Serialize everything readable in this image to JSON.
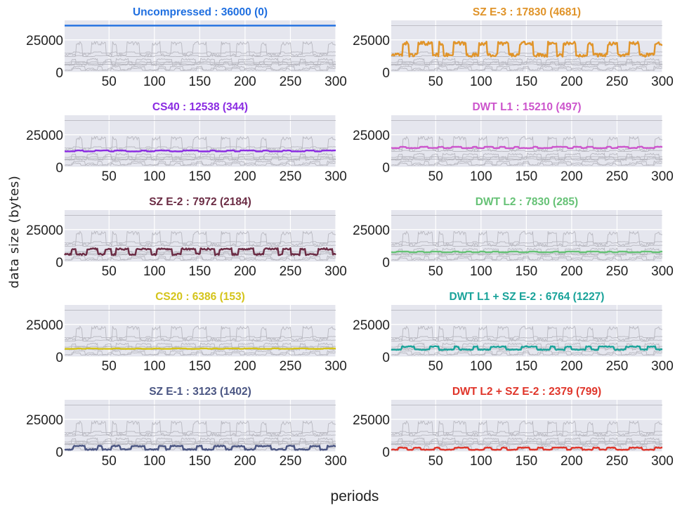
{
  "chart_data": {
    "type": "line",
    "xlabel": "periods",
    "ylabel": "data size (bytes)",
    "xlim": [
      1,
      300
    ],
    "ylim": [
      0,
      40000
    ],
    "x_ticks": [
      50,
      100,
      150,
      200,
      250,
      300
    ],
    "y_ticks": [
      0,
      25000
    ],
    "grid": true,
    "background": "#e5e6ee",
    "context_line_color": "#b8b8c0",
    "series_pattern": "periodic blocks of ~10 periods alternating between a low and high level",
    "series": [
      {
        "name": "Uncompressed",
        "title": "Uncompressed : 36000 (0)",
        "mean": 36000,
        "std": 0,
        "color": "#1f6fe0"
      },
      {
        "name": "SZ E-3",
        "title": "SZ E-3 : 17830 (4681)",
        "mean": 17830,
        "std": 4681,
        "color": "#e0942a"
      },
      {
        "name": "CS40",
        "title": "CS40 : 12538 (344)",
        "mean": 12538,
        "std": 344,
        "color": "#8a2be2"
      },
      {
        "name": "DWT L1",
        "title": "DWT L1 : 15210 (497)",
        "mean": 15210,
        "std": 497,
        "color": "#cc55cc"
      },
      {
        "name": "SZ E-2",
        "title": "SZ E-2 : 7972 (2184)",
        "mean": 7972,
        "std": 2184,
        "color": "#6b2c44"
      },
      {
        "name": "DWT L2",
        "title": "DWT L2 : 7830 (285)",
        "mean": 7830,
        "std": 285,
        "color": "#66c276"
      },
      {
        "name": "CS20",
        "title": "CS20 : 6386 (153)",
        "mean": 6386,
        "std": 153,
        "color": "#d4c41a"
      },
      {
        "name": "DWT L1 + SZ E-2",
        "title": "DWT L1 + SZ E-2 : 6764 (1227)",
        "mean": 6764,
        "std": 1227,
        "color": "#1aa39a"
      },
      {
        "name": "SZ E-1",
        "title": "SZ E-1 : 3123 (1402)",
        "mean": 3123,
        "std": 1402,
        "color": "#4a5582"
      },
      {
        "name": "DWT L2 + SZ E-2",
        "title": "DWT L2 + SZ E-2 : 2379 (799)",
        "mean": 2379,
        "std": 799,
        "color": "#e0352a"
      }
    ]
  }
}
